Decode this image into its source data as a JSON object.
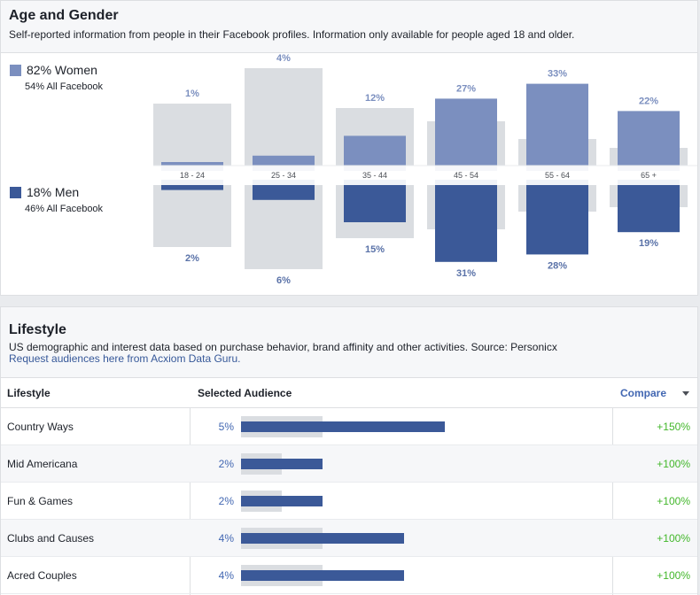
{
  "age_gender": {
    "title": "Age and Gender",
    "subtitle": "Self-reported information from people in their Facebook profiles. Information only available for people aged 18 and older.",
    "women": {
      "label": "82% Women",
      "sub": "54% All Facebook"
    },
    "men": {
      "label": "18% Men",
      "sub": "46% All Facebook"
    },
    "colors": {
      "women": "#7b8fbf",
      "men": "#3b5998",
      "background": "#dadde1",
      "women_label": "#7b8fbf",
      "men_label": "#5a72a8"
    }
  },
  "chart_data": {
    "type": "bar",
    "categories": [
      "18 - 24",
      "25 - 34",
      "35 - 44",
      "45 - 54",
      "55 - 64",
      "65 +"
    ],
    "series": [
      {
        "name": "Women",
        "values": [
          1,
          4,
          12,
          27,
          33,
          22
        ],
        "labels": [
          "1%",
          "4%",
          "12%",
          "27%",
          "33%",
          "22%"
        ],
        "all_facebook": [
          14,
          22,
          13,
          10,
          6,
          4
        ]
      },
      {
        "name": "Men",
        "values": [
          2,
          6,
          15,
          31,
          28,
          19
        ],
        "labels": [
          "2%",
          "6%",
          "15%",
          "31%",
          "28%",
          "19%"
        ],
        "all_facebook": [
          14,
          19,
          12,
          10,
          6,
          5
        ]
      }
    ]
  },
  "lifestyle": {
    "title": "Lifestyle",
    "subtitle": "US demographic and interest data based on purchase behavior, brand affinity and other activities. Source: Personicx",
    "link": "Request audiences here from Acxiom Data Guru.",
    "columns": {
      "lifestyle": "Lifestyle",
      "selected": "Selected Audience",
      "compare": "Compare"
    },
    "rows": [
      {
        "name": "Country Ways",
        "pct": "5%",
        "value": 5,
        "baseline": 2,
        "compare": "+150%"
      },
      {
        "name": "Mid Americana",
        "pct": "2%",
        "value": 2,
        "baseline": 1,
        "compare": "+100%"
      },
      {
        "name": "Fun & Games",
        "pct": "2%",
        "value": 2,
        "baseline": 1,
        "compare": "+100%"
      },
      {
        "name": "Clubs and Causes",
        "pct": "4%",
        "value": 4,
        "baseline": 2,
        "compare": "+100%"
      },
      {
        "name": "Acred Couples",
        "pct": "4%",
        "value": 4,
        "baseline": 2,
        "compare": "+100%"
      }
    ]
  }
}
